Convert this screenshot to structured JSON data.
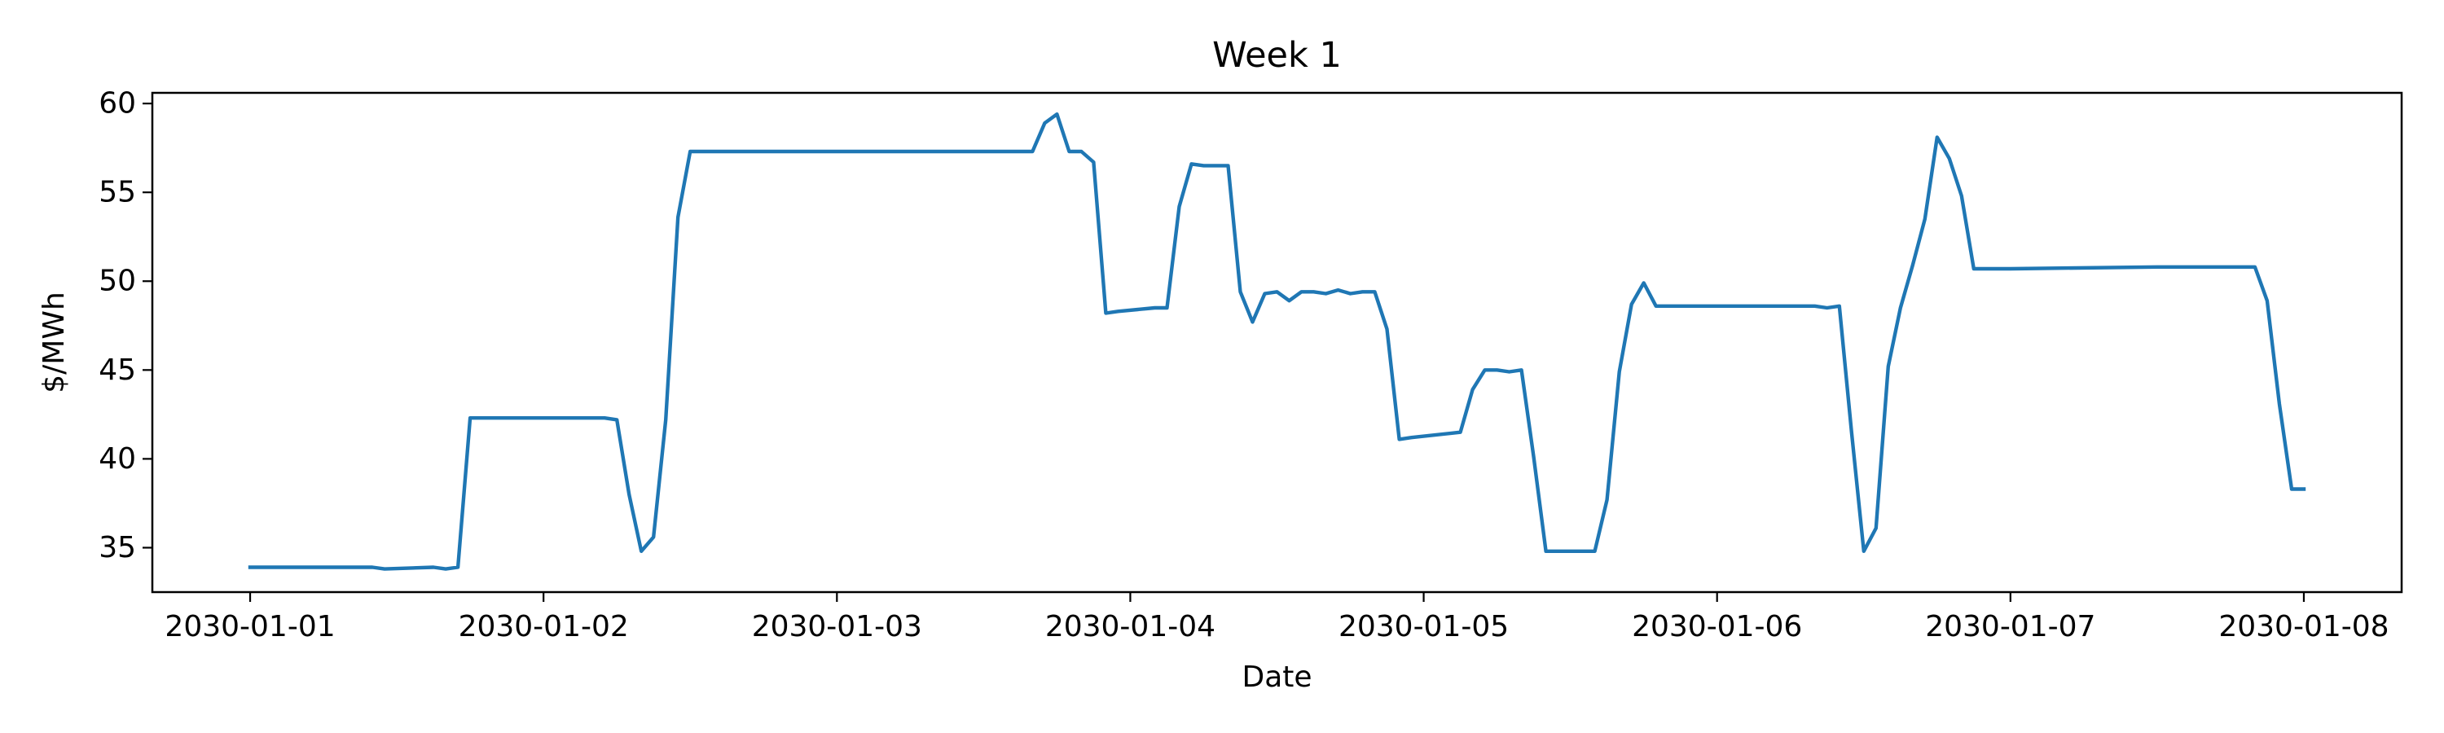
{
  "chart_data": {
    "type": "line",
    "title": "Week 1",
    "xlabel": "Date",
    "ylabel": "$/MWh",
    "x_ticks": [
      "2030-01-01",
      "2030-01-02",
      "2030-01-03",
      "2030-01-04",
      "2030-01-05",
      "2030-01-06",
      "2030-01-07",
      "2030-01-08"
    ],
    "y_ticks": [
      35,
      40,
      45,
      50,
      55,
      60
    ],
    "xlim": [
      "2029-12-31 16:00",
      "2030-01-08 08:00"
    ],
    "ylim": [
      32.5,
      60.6
    ],
    "grid": false,
    "color": "#1f77b4",
    "series": [
      {
        "x": [
          "2030-01-01 00:00",
          "2030-01-01 10:00",
          "2030-01-01 11:00",
          "2030-01-01 15:00",
          "2030-01-01 16:00",
          "2030-01-01 17:00",
          "2030-01-01 18:00",
          "2030-01-01 19:00",
          "2030-01-01 20:00",
          "2030-01-01 22:00",
          "2030-01-02 00:00",
          "2030-01-02 04:00",
          "2030-01-02 05:00",
          "2030-01-02 06:00",
          "2030-01-02 07:00",
          "2030-01-02 08:00",
          "2030-01-02 09:00",
          "2030-01-02 10:00",
          "2030-01-02 11:00",
          "2030-01-02 12:00",
          "2030-01-02 13:00",
          "2030-01-02 14:00",
          "2030-01-02 15:00",
          "2030-01-02 16:00",
          "2030-01-02 17:00",
          "2030-01-02 18:00",
          "2030-01-02 20:00",
          "2030-01-03 00:00",
          "2030-01-03 12:00",
          "2030-01-03 16:00",
          "2030-01-03 17:00",
          "2030-01-03 18:00",
          "2030-01-03 19:00",
          "2030-01-03 20:00",
          "2030-01-03 21:00",
          "2030-01-03 22:00",
          "2030-01-03 23:00",
          "2030-01-04 02:00",
          "2030-01-04 03:00",
          "2030-01-04 04:00",
          "2030-01-04 05:00",
          "2030-01-04 06:00",
          "2030-01-04 07:00",
          "2030-01-04 08:00",
          "2030-01-04 09:00",
          "2030-01-04 10:00",
          "2030-01-04 11:00",
          "2030-01-04 12:00",
          "2030-01-04 13:00",
          "2030-01-04 14:00",
          "2030-01-04 15:00",
          "2030-01-04 16:00",
          "2030-01-04 17:00",
          "2030-01-04 18:00",
          "2030-01-04 19:00",
          "2030-01-04 20:00",
          "2030-01-04 21:00",
          "2030-01-04 22:00",
          "2030-01-04 23:00",
          "2030-01-05 03:00",
          "2030-01-05 04:00",
          "2030-01-05 05:00",
          "2030-01-05 06:00",
          "2030-01-05 07:00",
          "2030-01-05 08:00",
          "2030-01-05 09:00",
          "2030-01-05 10:00",
          "2030-01-05 14:00",
          "2030-01-05 15:00",
          "2030-01-05 16:00",
          "2030-01-05 17:00",
          "2030-01-05 18:00",
          "2030-01-05 19:00",
          "2030-01-05 20:00",
          "2030-01-06 00:00",
          "2030-01-06 08:00",
          "2030-01-06 09:00",
          "2030-01-06 10:00",
          "2030-01-06 11:00",
          "2030-01-06 12:00",
          "2030-01-06 13:00",
          "2030-01-06 14:00",
          "2030-01-06 15:00",
          "2030-01-06 16:00",
          "2030-01-06 17:00",
          "2030-01-06 18:00",
          "2030-01-06 19:00",
          "2030-01-06 20:00",
          "2030-01-06 21:00",
          "2030-01-06 22:00",
          "2030-01-07 00:00",
          "2030-01-07 12:00",
          "2030-01-07 20:00",
          "2030-01-07 21:00",
          "2030-01-07 22:00",
          "2030-01-07 23:00",
          "2030-01-08 00:00"
        ],
        "y": [
          33.9,
          33.9,
          33.8,
          33.9,
          33.8,
          33.9,
          42.3,
          42.3,
          42.3,
          42.3,
          42.3,
          42.3,
          42.3,
          42.2,
          38.0,
          34.8,
          35.6,
          42.2,
          53.6,
          57.3,
          57.3,
          57.3,
          57.3,
          57.3,
          57.3,
          57.3,
          57.3,
          57.3,
          57.3,
          57.3,
          58.9,
          59.4,
          57.3,
          57.3,
          56.7,
          48.2,
          48.3,
          48.5,
          48.5,
          54.2,
          56.6,
          56.5,
          56.5,
          56.5,
          49.4,
          47.7,
          49.3,
          49.4,
          48.9,
          49.4,
          49.4,
          49.3,
          49.5,
          49.3,
          49.4,
          49.4,
          47.3,
          41.1,
          41.2,
          41.5,
          43.9,
          45.0,
          45.0,
          44.9,
          45.0,
          40.1,
          34.8,
          34.8,
          37.7,
          44.9,
          48.7,
          49.9,
          48.6,
          48.6,
          48.6,
          48.6,
          48.5,
          48.6,
          41.5,
          34.8,
          36.1,
          45.2,
          48.5,
          50.9,
          53.5,
          58.1,
          56.9,
          54.8,
          50.7,
          50.7,
          50.7,
          50.8,
          50.8,
          48.9,
          43.1,
          38.3,
          38.3
        ]
      }
    ]
  }
}
